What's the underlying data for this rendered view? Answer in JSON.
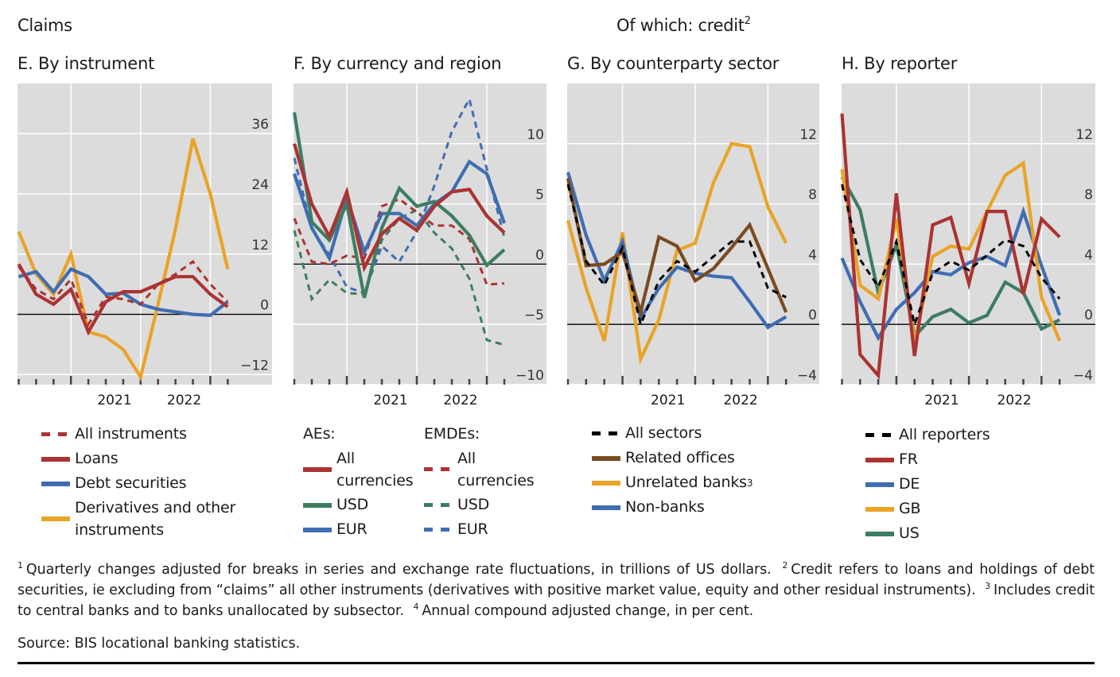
{
  "header": {
    "left_title": "Claims",
    "right_title": "Of which: credit",
    "right_title_sup": "2"
  },
  "colors": {
    "red": "#ab3333",
    "blue": "#3f6db2",
    "orange": "#e9a326",
    "green": "#3d7d62",
    "brown": "#7a4a22",
    "black": "#000000",
    "plot_bg": "#dcdcdc",
    "grid": "#ffffff"
  },
  "legends": {
    "E": [
      {
        "label": "All instruments",
        "color": "#ab3333",
        "dash": true
      },
      {
        "label": "Loans",
        "color": "#ab3333",
        "dash": false
      },
      {
        "label": "Debt securities",
        "color": "#3f6db2",
        "dash": false
      },
      {
        "label": "Derivatives and other instruments",
        "color": "#e9a326",
        "dash": false
      }
    ],
    "F": {
      "ae_head": "AEs:",
      "emde_head": "EMDEs:",
      "ae": [
        {
          "label": "All currencies",
          "color": "#ab3333",
          "dash": false
        },
        {
          "label": "USD",
          "color": "#3d7d62",
          "dash": false
        },
        {
          "label": "EUR",
          "color": "#3f6db2",
          "dash": false
        }
      ],
      "emde": [
        {
          "label": "All currencies",
          "color": "#ab3333",
          "dash": true
        },
        {
          "label": "USD",
          "color": "#3d7d62",
          "dash": true
        },
        {
          "label": "EUR",
          "color": "#3f6db2",
          "dash": true
        }
      ]
    },
    "G": [
      {
        "label": "All sectors",
        "color": "#000000",
        "dash": true
      },
      {
        "label": "Related offices",
        "color": "#7a4a22",
        "dash": false
      },
      {
        "label": "Unrelated banks",
        "sup": "3",
        "color": "#e9a326",
        "dash": false
      },
      {
        "label": "Non-banks",
        "color": "#3f6db2",
        "dash": false
      }
    ],
    "H": [
      {
        "label": "All reporters",
        "color": "#000000",
        "dash": true
      },
      {
        "label": "FR",
        "color": "#ab3333",
        "dash": false
      },
      {
        "label": "DE",
        "color": "#3f6db2",
        "dash": false
      },
      {
        "label": "GB",
        "color": "#e9a326",
        "dash": false
      },
      {
        "label": "US",
        "color": "#3d7d62",
        "dash": false
      }
    ]
  },
  "chart_data": [
    {
      "id": "E",
      "type": "line",
      "title": "E. By instrument",
      "xlabel": "",
      "ylabel": "",
      "x_tick_labels": [
        "2021",
        "2022"
      ],
      "n_quarters": 13,
      "year_boundaries_after_index": [
        3,
        7,
        11
      ],
      "year_label_centers": [
        5.5,
        9.5
      ],
      "ylim": [
        -14,
        46
      ],
      "yticks": [
        -12,
        0,
        12,
        24,
        36
      ],
      "grid": true,
      "legend_position": "bottom",
      "series": [
        {
          "name": "Derivatives and other instruments",
          "color": "#e9a326",
          "dash": false,
          "values": [
            16.5,
            8,
            4,
            12,
            -3.5,
            -4.5,
            -7,
            -12.5,
            2,
            17,
            35,
            24,
            9
          ]
        },
        {
          "name": "Debt securities",
          "color": "#3f6db2",
          "dash": false,
          "values": [
            7.5,
            8.5,
            4.5,
            9,
            7.5,
            4,
            4.2,
            2,
            1,
            0.5,
            0,
            -0.2,
            2.5
          ]
        },
        {
          "name": "All instruments",
          "color": "#ab3333",
          "dash": true,
          "values": [
            9.5,
            5,
            3,
            7,
            -2,
            3.5,
            3,
            2,
            6,
            8,
            10.5,
            6,
            2.5
          ]
        },
        {
          "name": "Loans",
          "color": "#ab3333",
          "dash": false,
          "values": [
            10,
            4,
            2,
            5,
            -3.5,
            2.5,
            4.5,
            4.5,
            6,
            7.5,
            7.5,
            4,
            1.5
          ]
        }
      ]
    },
    {
      "id": "F",
      "type": "line",
      "title": "F. By currency and region",
      "xlabel": "",
      "ylabel": "",
      "x_tick_labels": [
        "2021",
        "2022"
      ],
      "n_quarters": 13,
      "year_boundaries_after_index": [
        3,
        7,
        11
      ],
      "year_label_centers": [
        5.5,
        9.5
      ],
      "ylim": [
        -10,
        15
      ],
      "yticks": [
        -10,
        -5,
        0,
        5,
        10
      ],
      "grid": true,
      "legend_position": "bottom",
      "series": [
        {
          "name": "EMDEs: USD",
          "color": "#3d7d62",
          "dash": true,
          "values": [
            2.8,
            -2.9,
            -1.3,
            -2.4,
            -2.5,
            2,
            3.8,
            4.5,
            2.6,
            1.3,
            -1.2,
            -6.3,
            -6.7
          ]
        },
        {
          "name": "EMDEs: EUR",
          "color": "#3f6db2",
          "dash": true,
          "values": [
            8.8,
            2.9,
            0.8,
            -1.9,
            -2.4,
            1.5,
            0.2,
            2.7,
            6.5,
            11,
            13.7,
            7.9,
            2.2
          ]
        },
        {
          "name": "EMDEs: All currencies",
          "color": "#ab3333",
          "dash": true,
          "values": [
            3.8,
            0.2,
            0,
            0.7,
            0.5,
            4.8,
            5.4,
            4.3,
            3.2,
            3.2,
            2.1,
            -1.7,
            -1.6
          ]
        },
        {
          "name": "AEs: EUR",
          "color": "#3f6db2",
          "dash": false,
          "values": [
            7.5,
            3,
            0.5,
            5.5,
            1,
            4.2,
            4.2,
            3.2,
            5,
            6,
            8.5,
            7.5,
            3.4
          ]
        },
        {
          "name": "AEs: USD",
          "color": "#3d7d62",
          "dash": false,
          "values": [
            12.6,
            3.5,
            2,
            5,
            -2.8,
            3,
            6.3,
            4.8,
            5.2,
            4,
            2.4,
            -0.1,
            1.2
          ]
        },
        {
          "name": "AEs: All currencies",
          "color": "#ab3333",
          "dash": false,
          "values": [
            10,
            5,
            2.3,
            6,
            -0.3,
            2.5,
            3.8,
            2.8,
            4.8,
            6,
            6.2,
            4,
            2.6
          ]
        }
      ]
    },
    {
      "id": "G",
      "type": "line",
      "title": "G. By counterparty sector",
      "xlabel": "",
      "ylabel": "",
      "x_tick_labels": [
        "2021",
        "2022"
      ],
      "n_quarters": 13,
      "year_boundaries_after_index": [
        3,
        7,
        11
      ],
      "year_label_centers": [
        5.5,
        9.5
      ],
      "ylim": [
        -4,
        16
      ],
      "yticks": [
        -4,
        0,
        4,
        8,
        12
      ],
      "grid": true,
      "legend_position": "bottom",
      "series": [
        {
          "name": "Unrelated banks",
          "color": "#e9a326",
          "dash": false,
          "values": [
            6.9,
            2.4,
            -1.1,
            6.1,
            -2.3,
            0.3,
            4.9,
            5.4,
            9.4,
            12,
            11.8,
            7.8,
            5.4
          ]
        },
        {
          "name": "Non-banks",
          "color": "#3f6db2",
          "dash": false,
          "values": [
            10.1,
            5.9,
            2.9,
            5.5,
            0.4,
            2.4,
            3.8,
            3.4,
            3.2,
            3.1,
            1.5,
            -0.2,
            0.5
          ]
        },
        {
          "name": "Related offices",
          "color": "#7a4a22",
          "dash": false,
          "values": [
            9.7,
            3.9,
            4.0,
            4.8,
            0.8,
            5.8,
            5.2,
            2.9,
            3.7,
            5.1,
            6.6,
            3.7,
            0.8
          ]
        },
        {
          "name": "All sectors",
          "color": "#000000",
          "dash": true,
          "values": [
            9.3,
            4.2,
            2.6,
            5.1,
            0,
            2.9,
            4.2,
            3.5,
            4.5,
            5.5,
            5.5,
            2.4,
            1.8
          ]
        }
      ]
    },
    {
      "id": "H",
      "type": "line",
      "title": "H. By reporter",
      "xlabel": "",
      "ylabel": "",
      "x_tick_labels": [
        "2021",
        "2022"
      ],
      "n_quarters": 13,
      "year_boundaries_after_index": [
        3,
        7,
        11
      ],
      "year_label_centers": [
        5.5,
        9.5
      ],
      "ylim": [
        -4,
        16
      ],
      "yticks": [
        -4,
        0,
        4,
        8,
        12
      ],
      "grid": true,
      "legend_position": "bottom",
      "series": [
        {
          "name": "US",
          "color": "#3d7d62",
          "dash": false,
          "values": [
            9.8,
            7.6,
            2.1,
            5.3,
            -0.8,
            0.5,
            1.0,
            0.1,
            0.6,
            2.8,
            2.1,
            -0.3,
            0.3
          ]
        },
        {
          "name": "DE",
          "color": "#3f6db2",
          "dash": false,
          "values": [
            4.4,
            1.5,
            -0.9,
            1.0,
            2.1,
            3.5,
            3.3,
            4.1,
            4.5,
            3.9,
            7.5,
            3.9,
            0.6
          ]
        },
        {
          "name": "GB",
          "color": "#e9a326",
          "dash": false,
          "values": [
            10.3,
            2.6,
            1.7,
            7.0,
            -1.2,
            4.5,
            5.2,
            5.0,
            7.5,
            9.9,
            10.7,
            1.8,
            -1.1
          ]
        },
        {
          "name": "FR",
          "color": "#ab3333",
          "dash": false,
          "values": [
            14.0,
            -2.0,
            -3.4,
            8.7,
            -2.1,
            6.6,
            7.1,
            2.7,
            7.5,
            7.5,
            2.0,
            7.0,
            5.8
          ]
        },
        {
          "name": "All reporters",
          "color": "#000000",
          "dash": true,
          "values": [
            9.3,
            4.3,
            2.5,
            5.5,
            0,
            3.4,
            4.2,
            3.6,
            4.6,
            5.6,
            5.2,
            3.1,
            1.7
          ]
        }
      ]
    }
  ],
  "footnotes": [
    {
      "num": "1",
      "text": "Quarterly changes adjusted for breaks in series and exchange rate fluctuations, in trillions of US dollars."
    },
    {
      "num": "2",
      "text": "Credit refers to loans and holdings of debt securities, ie excluding from “claims” all other instruments (derivatives with positive market value, equity and other residual instruments)."
    },
    {
      "num": "3",
      "text": "Includes credit to central banks and to banks unallocated by subsector."
    },
    {
      "num": "4",
      "text": "Annual compound adjusted change, in per cent."
    }
  ],
  "source": "Source: BIS locational banking statistics."
}
